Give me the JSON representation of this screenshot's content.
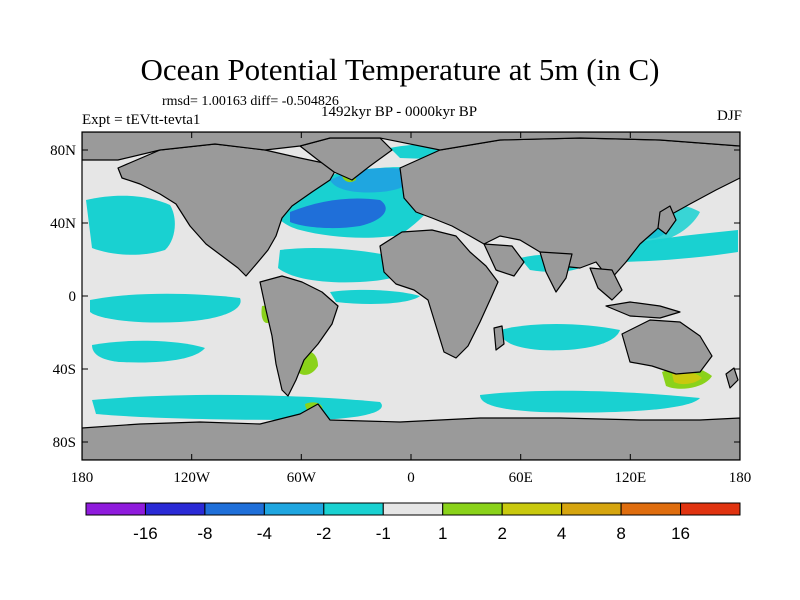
{
  "header": {
    "title": "Ocean Potential Temperature at 5m (in C)",
    "stats": "rmsd= 1.00163 diff= -0.504826",
    "experiment": "Expt = tEVtt-tevta1",
    "period": "1492kyr BP - 0000kyr BP",
    "season": "DJF"
  },
  "axes": {
    "x_ticks": [
      "180",
      "120W",
      "60W",
      "0",
      "60E",
      "120E",
      "180"
    ],
    "y_ticks": [
      "80N",
      "40N",
      "0",
      "40S",
      "80S"
    ]
  },
  "colorbar": {
    "bins": [
      {
        "color": "#8f1bdc"
      },
      {
        "color": "#2a2ad6"
      },
      {
        "color": "#1f6fd9"
      },
      {
        "color": "#1fa6e0"
      },
      {
        "color": "#19d1d1"
      },
      {
        "color": "#e6e6e6"
      },
      {
        "color": "#8ad21a"
      },
      {
        "color": "#c9c90e"
      },
      {
        "color": "#d6a50f"
      },
      {
        "color": "#df6d0e"
      },
      {
        "color": "#e03310"
      }
    ],
    "labels": [
      "-16",
      "-8",
      "-4",
      "-2",
      "-1",
      "1",
      "2",
      "4",
      "8",
      "16"
    ]
  },
  "colors": {
    "land": "#9a9a9a",
    "ocean_neutral": "#e6e6e6",
    "cool_light": "#19d1d1",
    "cool_mid": "#1fa6e0",
    "cool_strong": "#1f6fd9",
    "warm_light": "#8ad21a",
    "warm_mid": "#c9c90e"
  }
}
